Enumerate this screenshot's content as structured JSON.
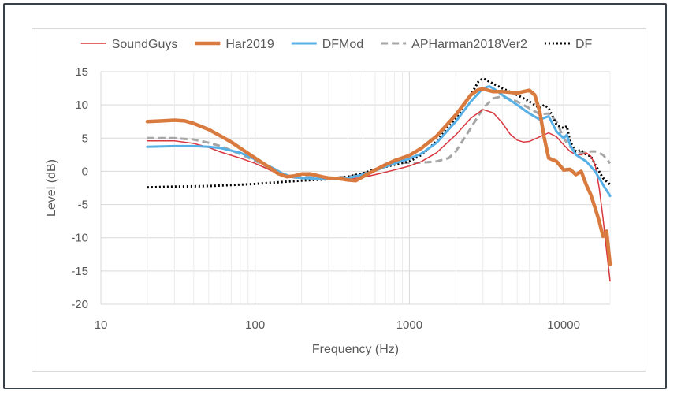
{
  "chart_data": {
    "type": "line",
    "title": "",
    "xlabel": "Frequency (Hz)",
    "ylabel": "Level (dB)",
    "xscale": "log",
    "xlim": [
      10,
      20000
    ],
    "ylim": [
      -20,
      15
    ],
    "xticks": [
      {
        "value": 10,
        "label": "10"
      },
      {
        "value": 100,
        "label": "100"
      },
      {
        "value": 1000,
        "label": "1000"
      },
      {
        "value": 10000,
        "label": "10000"
      }
    ],
    "yticks": [
      {
        "value": 15,
        "label": "15"
      },
      {
        "value": 10,
        "label": "10"
      },
      {
        "value": 5,
        "label": "5"
      },
      {
        "value": 0,
        "label": "0"
      },
      {
        "value": -5,
        "label": "-5"
      },
      {
        "value": -10,
        "label": "-10"
      },
      {
        "value": -15,
        "label": "-15"
      },
      {
        "value": -20,
        "label": "-20"
      }
    ],
    "grid": "major and minor (log)",
    "legend_position": "top",
    "series": [
      {
        "name": "SoundGuys",
        "key": "soundguys",
        "color": "#d9363e",
        "style": "solid",
        "weight": "thin",
        "points": [
          [
            20,
            4.6
          ],
          [
            30,
            4.6
          ],
          [
            40,
            4.2
          ],
          [
            50,
            3.6
          ],
          [
            60,
            2.9
          ],
          [
            80,
            2.0
          ],
          [
            100,
            1.2
          ],
          [
            130,
            0.0
          ],
          [
            150,
            -0.6
          ],
          [
            180,
            -1.0
          ],
          [
            200,
            -1.0
          ],
          [
            250,
            -1.1
          ],
          [
            300,
            -1.2
          ],
          [
            400,
            -1.2
          ],
          [
            500,
            -0.9
          ],
          [
            600,
            -0.5
          ],
          [
            800,
            0.2
          ],
          [
            1000,
            0.8
          ],
          [
            1200,
            1.5
          ],
          [
            1500,
            2.8
          ],
          [
            2000,
            5.5
          ],
          [
            2500,
            8.0
          ],
          [
            3000,
            9.3
          ],
          [
            3500,
            8.8
          ],
          [
            4000,
            7.3
          ],
          [
            4500,
            5.6
          ],
          [
            5000,
            4.7
          ],
          [
            5500,
            4.4
          ],
          [
            6000,
            4.5
          ],
          [
            7000,
            5.2
          ],
          [
            8000,
            5.8
          ],
          [
            9000,
            5.2
          ],
          [
            10000,
            4.0
          ],
          [
            11000,
            3.0
          ],
          [
            12000,
            2.5
          ],
          [
            13000,
            2.5
          ],
          [
            14000,
            2.8
          ],
          [
            15000,
            2.3
          ],
          [
            16000,
            1.0
          ],
          [
            17000,
            -2.5
          ],
          [
            18000,
            -7.0
          ],
          [
            19000,
            -12.0
          ],
          [
            20000,
            -16.5
          ]
        ]
      },
      {
        "name": "Har2019",
        "key": "har2019",
        "color": "#d97a3f",
        "style": "solid",
        "weight": "thick",
        "points": [
          [
            20,
            7.5
          ],
          [
            25,
            7.6
          ],
          [
            30,
            7.7
          ],
          [
            35,
            7.6
          ],
          [
            40,
            7.2
          ],
          [
            50,
            6.3
          ],
          [
            60,
            5.3
          ],
          [
            70,
            4.4
          ],
          [
            80,
            3.5
          ],
          [
            100,
            2.0
          ],
          [
            120,
            0.8
          ],
          [
            140,
            -0.3
          ],
          [
            160,
            -0.8
          ],
          [
            180,
            -0.7
          ],
          [
            200,
            -0.4
          ],
          [
            230,
            -0.4
          ],
          [
            270,
            -0.8
          ],
          [
            300,
            -1.0
          ],
          [
            350,
            -1.1
          ],
          [
            400,
            -1.3
          ],
          [
            450,
            -1.4
          ],
          [
            500,
            -0.8
          ],
          [
            600,
            0.2
          ],
          [
            700,
            1.0
          ],
          [
            800,
            1.6
          ],
          [
            1000,
            2.4
          ],
          [
            1200,
            3.5
          ],
          [
            1500,
            5.3
          ],
          [
            2000,
            8.5
          ],
          [
            2500,
            11.5
          ],
          [
            2800,
            12.3
          ],
          [
            3000,
            12.4
          ],
          [
            3500,
            12.0
          ],
          [
            4000,
            12.0
          ],
          [
            5000,
            11.8
          ],
          [
            6000,
            12.2
          ],
          [
            6500,
            11.5
          ],
          [
            7000,
            9.0
          ],
          [
            7500,
            5.0
          ],
          [
            8000,
            2.0
          ],
          [
            9000,
            1.5
          ],
          [
            10000,
            0.2
          ],
          [
            11000,
            0.3
          ],
          [
            12000,
            -0.5
          ],
          [
            13000,
            0.0
          ],
          [
            14000,
            -2.0
          ],
          [
            15000,
            -3.5
          ],
          [
            16000,
            -5.5
          ],
          [
            17000,
            -7.5
          ],
          [
            18000,
            -9.8
          ],
          [
            19000,
            -9.0
          ],
          [
            20000,
            -14.0
          ]
        ]
      },
      {
        "name": "DFMod",
        "key": "dfmod",
        "color": "#56b0e6",
        "style": "solid",
        "weight": "medium",
        "points": [
          [
            20,
            3.7
          ],
          [
            30,
            3.8
          ],
          [
            40,
            3.8
          ],
          [
            50,
            3.7
          ],
          [
            60,
            3.5
          ],
          [
            80,
            2.8
          ],
          [
            100,
            1.8
          ],
          [
            130,
            0.5
          ],
          [
            150,
            -0.3
          ],
          [
            170,
            -0.8
          ],
          [
            200,
            -1.0
          ],
          [
            250,
            -1.1
          ],
          [
            300,
            -1.2
          ],
          [
            400,
            -1.0
          ],
          [
            500,
            -0.5
          ],
          [
            600,
            0.1
          ],
          [
            700,
            0.7
          ],
          [
            800,
            1.2
          ],
          [
            1000,
            1.9
          ],
          [
            1200,
            2.7
          ],
          [
            1500,
            4.3
          ],
          [
            2000,
            7.5
          ],
          [
            2500,
            10.5
          ],
          [
            3000,
            12.5
          ],
          [
            3300,
            12.8
          ],
          [
            3600,
            12.3
          ],
          [
            4000,
            11.5
          ],
          [
            5000,
            10.0
          ],
          [
            6000,
            8.7
          ],
          [
            7000,
            7.8
          ],
          [
            8000,
            8.3
          ],
          [
            9000,
            6.0
          ],
          [
            10000,
            5.0
          ],
          [
            10500,
            5.5
          ],
          [
            11000,
            4.0
          ],
          [
            12000,
            2.5
          ],
          [
            14000,
            1.5
          ],
          [
            16000,
            0.0
          ],
          [
            18000,
            -2.0
          ],
          [
            20000,
            -3.7
          ]
        ]
      },
      {
        "name": "APHarman2018Ver2",
        "key": "apharman2018ver2",
        "color": "#a6a6a6",
        "style": "dashed",
        "weight": "medium",
        "points": [
          [
            20,
            5.0
          ],
          [
            30,
            5.0
          ],
          [
            40,
            4.8
          ],
          [
            50,
            4.3
          ],
          [
            60,
            3.8
          ],
          [
            80,
            2.6
          ],
          [
            100,
            1.6
          ],
          [
            130,
            0.2
          ],
          [
            150,
            -0.5
          ],
          [
            180,
            -0.9
          ],
          [
            200,
            -0.8
          ],
          [
            250,
            -0.9
          ],
          [
            300,
            -1.0
          ],
          [
            400,
            -0.8
          ],
          [
            500,
            -0.3
          ],
          [
            600,
            0.3
          ],
          [
            700,
            0.9
          ],
          [
            800,
            1.3
          ],
          [
            1000,
            1.3
          ],
          [
            1200,
            1.3
          ],
          [
            1500,
            1.5
          ],
          [
            1800,
            2.0
          ],
          [
            2000,
            3.0
          ],
          [
            2500,
            6.5
          ],
          [
            3000,
            9.5
          ],
          [
            3500,
            11.0
          ],
          [
            4000,
            11.3
          ],
          [
            5000,
            10.5
          ],
          [
            6000,
            9.5
          ],
          [
            7000,
            8.6
          ],
          [
            8000,
            8.7
          ],
          [
            9000,
            7.5
          ],
          [
            10000,
            5.0
          ],
          [
            11000,
            3.7
          ],
          [
            12000,
            3.0
          ],
          [
            13000,
            2.8
          ],
          [
            14000,
            2.8
          ],
          [
            15000,
            3.0
          ],
          [
            16000,
            3.0
          ],
          [
            18000,
            2.5
          ],
          [
            20000,
            1.2
          ]
        ]
      },
      {
        "name": "DF",
        "key": "df",
        "color": "#000000",
        "style": "dotted",
        "weight": "medium",
        "points": [
          [
            20,
            -2.4
          ],
          [
            30,
            -2.3
          ],
          [
            50,
            -2.2
          ],
          [
            80,
            -2.0
          ],
          [
            100,
            -1.9
          ],
          [
            150,
            -1.6
          ],
          [
            200,
            -1.4
          ],
          [
            300,
            -1.2
          ],
          [
            400,
            -0.8
          ],
          [
            500,
            -0.3
          ],
          [
            600,
            0.3
          ],
          [
            800,
            1.0
          ],
          [
            1000,
            1.5
          ],
          [
            1200,
            2.5
          ],
          [
            1500,
            4.5
          ],
          [
            2000,
            8.0
          ],
          [
            2500,
            11.5
          ],
          [
            2800,
            13.5
          ],
          [
            3000,
            14.0
          ],
          [
            3500,
            13.2
          ],
          [
            4000,
            12.5
          ],
          [
            5000,
            11.5
          ],
          [
            6000,
            10.5
          ],
          [
            7000,
            9.5
          ],
          [
            7500,
            10.0
          ],
          [
            8000,
            9.5
          ],
          [
            9000,
            7.0
          ],
          [
            10000,
            6.5
          ],
          [
            10500,
            6.8
          ],
          [
            11000,
            4.5
          ],
          [
            12000,
            3.0
          ],
          [
            13000,
            3.2
          ],
          [
            14000,
            2.5
          ],
          [
            15000,
            2.3
          ],
          [
            16000,
            1.0
          ],
          [
            18000,
            -1.0
          ],
          [
            20000,
            -2.0
          ]
        ]
      }
    ]
  }
}
